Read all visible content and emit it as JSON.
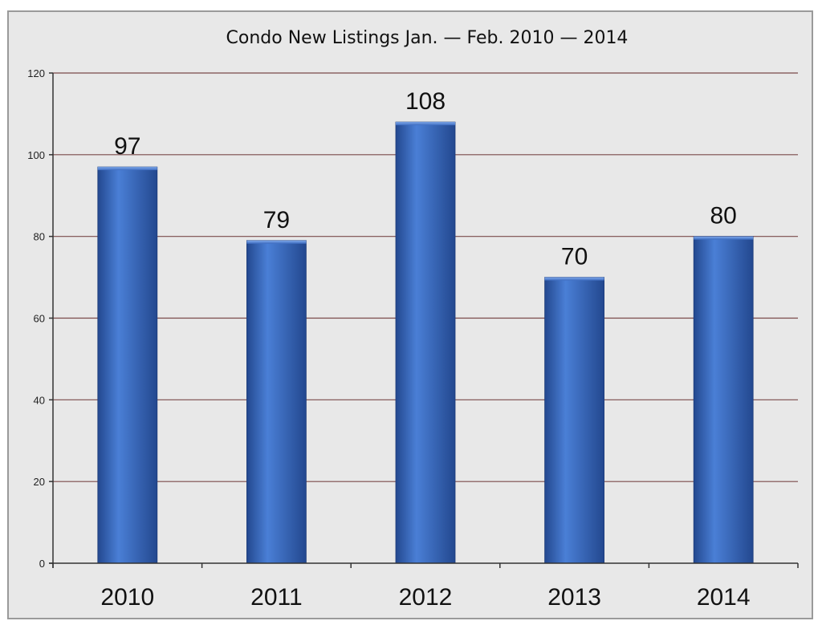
{
  "chart_data": {
    "type": "bar",
    "title": "Condo New Listings Jan. — Feb.  2010 — 2014",
    "categories": [
      "2010",
      "2011",
      "2012",
      "2013",
      "2014"
    ],
    "values": [
      97,
      79,
      108,
      70,
      80
    ],
    "data_labels": [
      "97",
      "79",
      "108",
      "70",
      "80"
    ],
    "ylim": [
      0,
      120
    ],
    "yticks": [
      0,
      20,
      40,
      60,
      80,
      100,
      120
    ],
    "ytick_labels": [
      "0",
      "20",
      "40",
      "60",
      "80",
      "100",
      "120"
    ],
    "xlabel": "",
    "ylabel": "",
    "grid": true,
    "colors": {
      "bar_light": "#4a7fd6",
      "bar_dark": "#23488f",
      "grid": "#7a4a4a",
      "background": "#e8e8e8"
    }
  }
}
